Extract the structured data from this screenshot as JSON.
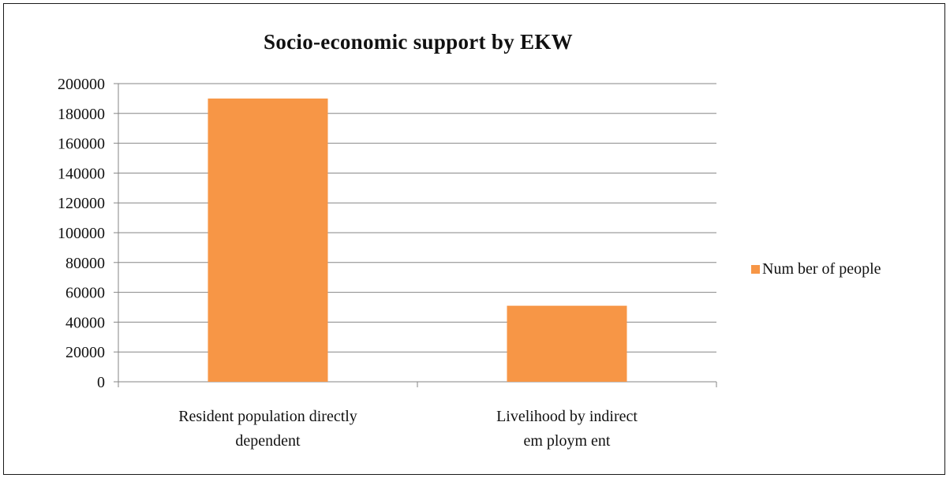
{
  "chart_data": {
    "type": "bar",
    "title": "Socio-economic support by EKW",
    "categories": [
      [
        "Resident population directly",
        "dependent"
      ],
      [
        "Livelihood by indirect",
        "em ploym ent"
      ]
    ],
    "series": [
      {
        "name": "Num ber of people",
        "values": [
          190000,
          51000
        ]
      }
    ],
    "ylim": [
      0,
      200000
    ],
    "yticks": [
      0,
      20000,
      40000,
      60000,
      80000,
      100000,
      120000,
      140000,
      160000,
      180000,
      200000
    ],
    "xlabel": "",
    "ylabel": "",
    "grid": true,
    "legend_position": "right",
    "colors": {
      "bar": "#F79646",
      "grid": "#868686",
      "axis": "#868686",
      "text": "#111111"
    }
  }
}
